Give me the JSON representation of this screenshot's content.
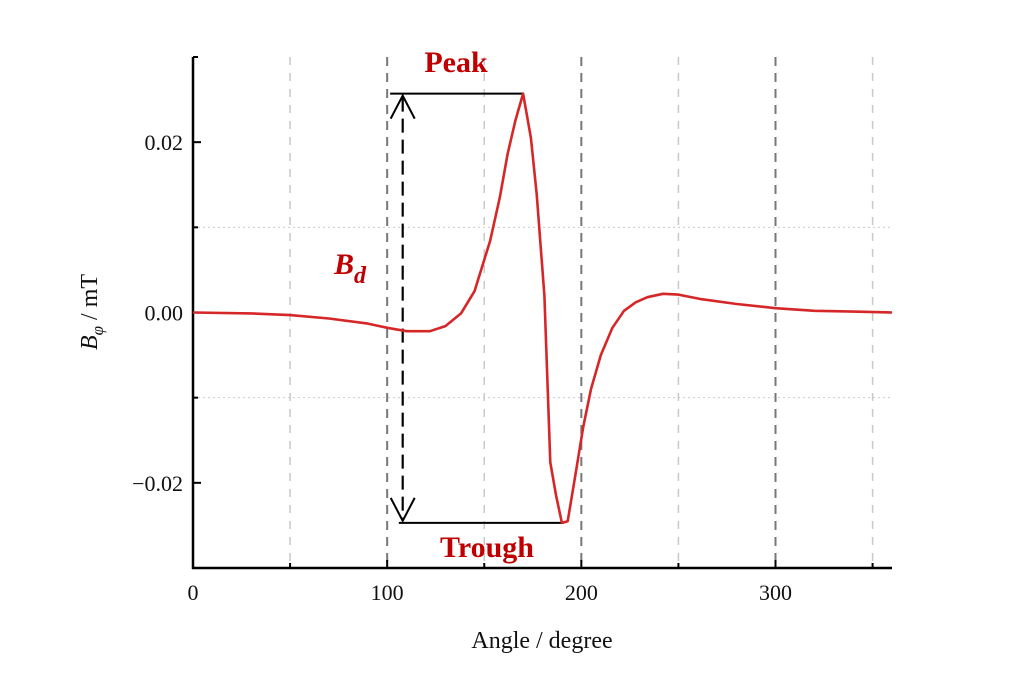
{
  "chart_data": {
    "type": "line",
    "title": "",
    "xlabel": "Angle / degree",
    "ylabel_main": "B",
    "ylabel_sub": "φ",
    "ylabel_unit": " / mT",
    "xlim": [
      0,
      360
    ],
    "ylim": [
      -0.03,
      0.03
    ],
    "xticks": [
      0,
      100,
      200,
      300
    ],
    "xtick_labels": [
      "0",
      "100",
      "200",
      "300"
    ],
    "yticks": [
      -0.02,
      0.0,
      0.02
    ],
    "ytick_labels": [
      "−0.02",
      "0.00",
      "0.02"
    ],
    "grid": true,
    "series": [
      {
        "name": "B_phi",
        "color": "#d62728",
        "x": [
          0,
          30,
          50,
          70,
          90,
          100,
          110,
          122,
          130,
          138,
          145,
          153,
          158,
          162,
          166,
          170,
          174,
          177,
          181,
          184,
          187,
          190,
          193,
          197,
          201,
          205,
          210,
          216,
          222,
          228,
          234,
          242,
          250,
          261,
          280,
          300,
          320,
          340,
          360
        ],
        "y": [
          0,
          -0.0001,
          -0.0003,
          -0.0007,
          -0.0013,
          -0.0018,
          -0.0022,
          -0.0022,
          -0.0016,
          -0.0001,
          0.0025,
          0.0084,
          0.0135,
          0.0186,
          0.0225,
          0.0257,
          0.0205,
          0.0139,
          0.002,
          -0.0176,
          -0.0215,
          -0.0247,
          -0.0245,
          -0.019,
          -0.0134,
          -0.009,
          -0.005,
          -0.0018,
          0.0002,
          0.0012,
          0.0018,
          0.0022,
          0.0021,
          0.0016,
          0.001,
          0.0005,
          0.0002,
          0.0001,
          0.0
        ]
      }
    ],
    "annotations": {
      "peak_label": "Peak",
      "trough_label": "Trough",
      "bd_main": "B",
      "bd_sub": "d",
      "peak_value": 0.0257,
      "trough_value": -0.0247
    }
  }
}
